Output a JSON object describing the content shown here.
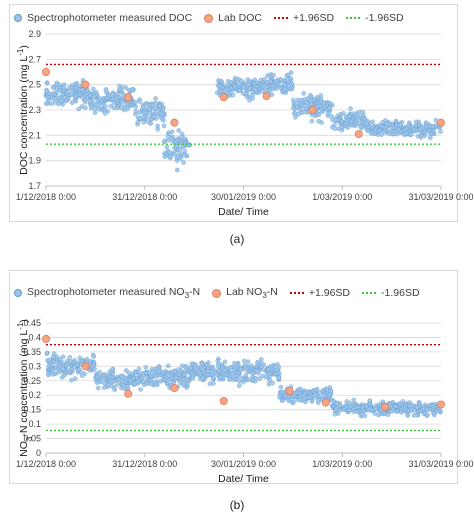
{
  "chart_data": [
    {
      "panel": "(a)",
      "type": "scatter",
      "legend": {
        "series": "Spectrophotometer measured DOC",
        "lab": "Lab DOC",
        "upper": "+1.96SD",
        "lower": "-1.96SD"
      },
      "xlabel": "Date/ Time",
      "ylabel": "DOC concentration (mg L",
      "ylabel_sup": "-1",
      "ylabel_end": ")",
      "x_ticks": [
        "1/12/2018 0:00",
        "31/12/2018 0:00",
        "30/01/2019 0:00",
        "1/03/2019 0:00",
        "31/03/2019 0:00"
      ],
      "xlim": [
        "2018-12-01",
        "2019-03-31"
      ],
      "ylim": [
        1.7,
        2.9
      ],
      "y_ticks": [
        1.7,
        1.9,
        2.1,
        2.3,
        2.5,
        2.7,
        2.9
      ],
      "grid": "horizontal",
      "upper_limit": 2.66,
      "lower_limit": 2.03,
      "lab_points": [
        {
          "x": "2018-12-01",
          "y": 2.6
        },
        {
          "x": "2018-12-13",
          "y": 2.5
        },
        {
          "x": "2018-12-26",
          "y": 2.4
        },
        {
          "x": "2019-01-09",
          "y": 2.2
        },
        {
          "x": "2019-01-24",
          "y": 2.4
        },
        {
          "x": "2019-02-06",
          "y": 2.41
        },
        {
          "x": "2019-02-20",
          "y": 2.3
        },
        {
          "x": "2019-03-06",
          "y": 2.11
        },
        {
          "x": "2019-03-31",
          "y": 2.2
        }
      ],
      "segments": [
        {
          "from": "2018-12-01",
          "to": "2018-12-14",
          "mean": 2.42,
          "spread": 0.12
        },
        {
          "from": "2018-12-14",
          "to": "2018-12-28",
          "mean": 2.38,
          "spread": 0.12
        },
        {
          "from": "2018-12-28",
          "to": "2019-01-06",
          "mean": 2.28,
          "spread": 0.14
        },
        {
          "from": "2019-01-06",
          "to": "2019-01-14",
          "mean": 2.0,
          "spread": 0.18
        },
        {
          "from": "2019-01-22",
          "to": "2019-02-04",
          "mean": 2.48,
          "spread": 0.1
        },
        {
          "from": "2019-02-04",
          "to": "2019-02-14",
          "mean": 2.5,
          "spread": 0.1
        },
        {
          "from": "2019-02-14",
          "to": "2019-02-26",
          "mean": 2.32,
          "spread": 0.12
        },
        {
          "from": "2019-02-26",
          "to": "2019-03-08",
          "mean": 2.22,
          "spread": 0.1
        },
        {
          "from": "2019-03-08",
          "to": "2019-03-31",
          "mean": 2.15,
          "spread": 0.08
        }
      ],
      "caption": "(a)"
    },
    {
      "panel": "(b)",
      "type": "scatter",
      "legend": {
        "series": "Spectrophotometer measured NO",
        "series_sub": "3",
        "series_end": "-N",
        "lab": "Lab NO",
        "lab_sub": "3",
        "lab_end": "-N",
        "upper": "+1.96SD",
        "lower": "-1.96SD"
      },
      "xlabel": "Date/ Time",
      "ylabel": "NO",
      "ylabel_sub": "3",
      "ylabel_mid": "-N concentration (mg L",
      "ylabel_sup": "-1",
      "ylabel_end": ")",
      "x_ticks": [
        "1/12/2018 0:00",
        "31/12/2018 0:00",
        "30/01/2019 0:00",
        "1/03/2019 0:00",
        "31/03/2019 0:00"
      ],
      "xlim": [
        "2018-12-01",
        "2019-03-31"
      ],
      "ylim": [
        0,
        0.45
      ],
      "y_ticks": [
        0,
        0.05,
        0.1,
        0.15,
        0.2,
        0.25,
        0.3,
        0.35,
        0.4,
        0.45
      ],
      "grid": "horizontal",
      "upper_limit": 0.375,
      "lower_limit": 0.078,
      "lab_points": [
        {
          "x": "2018-12-01",
          "y": 0.395
        },
        {
          "x": "2018-12-13",
          "y": 0.3
        },
        {
          "x": "2018-12-26",
          "y": 0.205
        },
        {
          "x": "2019-01-09",
          "y": 0.225
        },
        {
          "x": "2019-01-24",
          "y": 0.18
        },
        {
          "x": "2019-02-13",
          "y": 0.215
        },
        {
          "x": "2019-02-24",
          "y": 0.175
        },
        {
          "x": "2019-03-14",
          "y": 0.16
        },
        {
          "x": "2019-03-31",
          "y": 0.168
        }
      ],
      "segments": [
        {
          "from": "2018-12-01",
          "to": "2018-12-16",
          "mean": 0.3,
          "spread": 0.05
        },
        {
          "from": "2018-12-16",
          "to": "2018-12-31",
          "mean": 0.255,
          "spread": 0.045
        },
        {
          "from": "2018-12-31",
          "to": "2019-01-14",
          "mean": 0.265,
          "spread": 0.05
        },
        {
          "from": "2019-01-14",
          "to": "2019-02-10",
          "mean": 0.28,
          "spread": 0.05
        },
        {
          "from": "2019-02-10",
          "to": "2019-02-26",
          "mean": 0.2,
          "spread": 0.035
        },
        {
          "from": "2019-02-26",
          "to": "2019-03-31",
          "mean": 0.155,
          "spread": 0.03
        }
      ],
      "caption": "(b)"
    }
  ],
  "colors": {
    "series": "#9dc3e6",
    "series_edge": "#5b9bd5",
    "lab": "#f4a582",
    "lab_edge": "#e07a5f",
    "upper": "#c00000",
    "lower": "#33cc33",
    "grid": "#d9d9d9"
  }
}
